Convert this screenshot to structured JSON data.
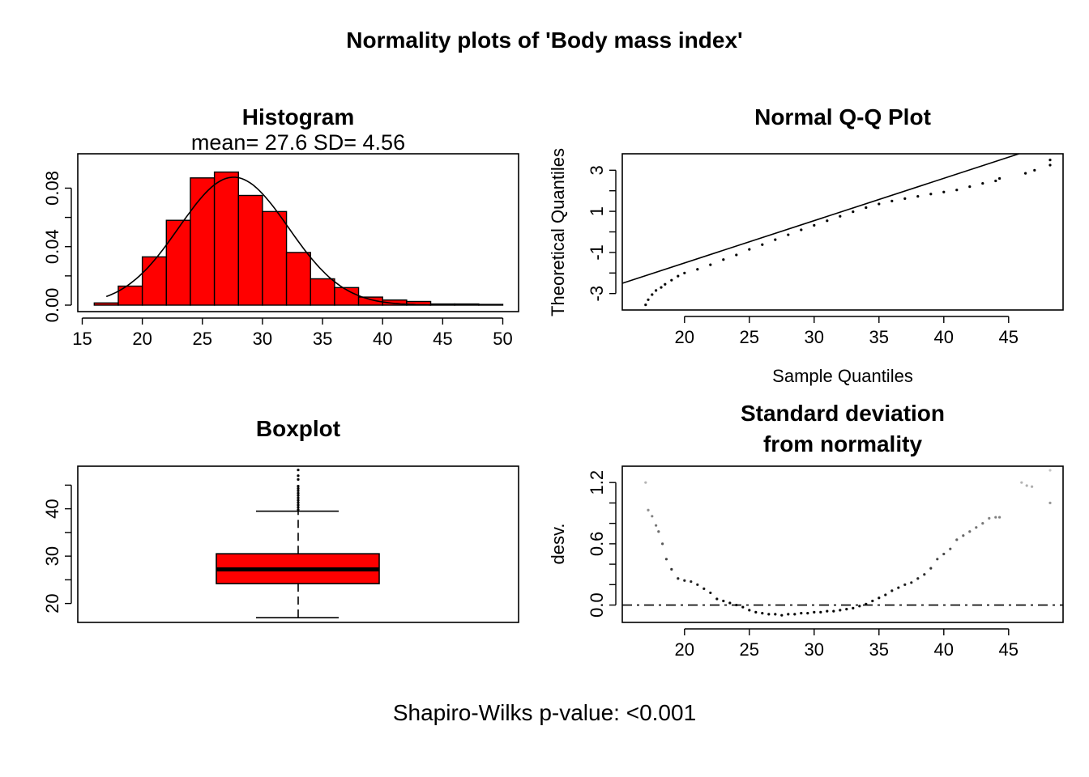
{
  "title": "Normality plots of 'Body mass index'",
  "footer": "Shapiro-Wilks p-value: <0.001",
  "colors": {
    "bar_fill": "#ff0000",
    "box_fill": "#ff0000",
    "line": "#000000"
  },
  "chart_data": [
    {
      "type": "bar",
      "title": "Histogram",
      "subtitle": "mean= 27.6  SD= 4.56",
      "bins": [
        [
          16,
          18
        ],
        [
          18,
          20
        ],
        [
          20,
          22
        ],
        [
          22,
          24
        ],
        [
          24,
          26
        ],
        [
          26,
          28
        ],
        [
          28,
          30
        ],
        [
          30,
          32
        ],
        [
          32,
          34
        ],
        [
          34,
          36
        ],
        [
          36,
          38
        ],
        [
          38,
          40
        ],
        [
          40,
          42
        ],
        [
          42,
          44
        ],
        [
          44,
          46
        ],
        [
          46,
          48
        ],
        [
          48,
          50
        ]
      ],
      "values": [
        0.0015,
        0.013,
        0.033,
        0.058,
        0.087,
        0.091,
        0.075,
        0.064,
        0.036,
        0.018,
        0.012,
        0.0055,
        0.0035,
        0.0025,
        0.0008,
        0.0008,
        0.0005
      ],
      "normal_curve": {
        "mean": 27.6,
        "sd": 4.56,
        "x_range": [
          17,
          44
        ]
      },
      "xlim": [
        15,
        50
      ],
      "ylim": [
        0,
        0.094
      ],
      "xticks": [
        "15",
        "20",
        "25",
        "30",
        "35",
        "40",
        "45",
        "50"
      ],
      "yticks": [
        "0.00",
        "0.04",
        "0.08"
      ]
    },
    {
      "type": "scatter",
      "title": "Normal Q-Q Plot",
      "xlabel": "Sample Quantiles",
      "ylabel": "Theoretical Quantiles",
      "xlim": [
        15.2,
        49.2
      ],
      "ylim": [
        -3.8,
        3.8
      ],
      "reference_line": {
        "x": [
          15.2,
          49.2
        ],
        "y": [
          -2.5,
          4.5
        ]
      },
      "points": [
        [
          17.0,
          -3.55
        ],
        [
          17.2,
          -3.3
        ],
        [
          17.5,
          -3.05
        ],
        [
          17.8,
          -2.85
        ],
        [
          18.2,
          -2.7
        ],
        [
          18.5,
          -2.55
        ],
        [
          19.0,
          -2.35
        ],
        [
          19.5,
          -2.15
        ],
        [
          20.0,
          -2.0
        ],
        [
          21.0,
          -1.82
        ],
        [
          22.0,
          -1.6
        ],
        [
          23.0,
          -1.35
        ],
        [
          24.0,
          -1.12
        ],
        [
          25.0,
          -0.85
        ],
        [
          26.0,
          -0.62
        ],
        [
          27.0,
          -0.38
        ],
        [
          28.0,
          -0.14
        ],
        [
          29.0,
          0.1
        ],
        [
          30.0,
          0.32
        ],
        [
          31.0,
          0.54
        ],
        [
          32.0,
          0.76
        ],
        [
          33.0,
          0.98
        ],
        [
          34.0,
          1.18
        ],
        [
          35.0,
          1.36
        ],
        [
          36.0,
          1.5
        ],
        [
          37.0,
          1.62
        ],
        [
          38.0,
          1.73
        ],
        [
          39.0,
          1.84
        ],
        [
          40.0,
          1.94
        ],
        [
          41.0,
          2.04
        ],
        [
          42.0,
          2.2
        ],
        [
          43.0,
          2.36
        ],
        [
          44.0,
          2.48
        ],
        [
          44.3,
          2.6
        ],
        [
          46.3,
          2.85
        ],
        [
          47.0,
          3.0
        ],
        [
          48.2,
          3.25
        ],
        [
          48.2,
          3.5
        ]
      ],
      "xticks": [
        "20",
        "25",
        "30",
        "35",
        "40",
        "45"
      ],
      "yticks": [
        "-3",
        "-1",
        "1",
        "3"
      ]
    },
    {
      "type": "boxplot",
      "title": "Boxplot",
      "stats": {
        "whisker_low": 17,
        "q1": 24.2,
        "median": 27.2,
        "q3": 30.5,
        "whisker_high": 39.5
      },
      "outliers": [
        39.8,
        40.3,
        40.8,
        41.3,
        41.8,
        42.3,
        42.8,
        43.3,
        43.8,
        44.3,
        44.8,
        46.2,
        47.0,
        48.2
      ],
      "ylim": [
        16,
        49
      ],
      "yticks": [
        "20",
        "30",
        "40"
      ]
    },
    {
      "type": "scatter",
      "title": "Standard deviation\nfrom normality",
      "ylabel": "desv.",
      "xlim": [
        15.2,
        49.2
      ],
      "ylim": [
        -0.17,
        1.36
      ],
      "reference_line": {
        "y": 0,
        "style": "dash-dot"
      },
      "points": [
        [
          17.0,
          1.2
        ],
        [
          17.2,
          0.93
        ],
        [
          17.5,
          0.87
        ],
        [
          17.8,
          0.78
        ],
        [
          18.0,
          0.72
        ],
        [
          18.3,
          0.6
        ],
        [
          18.6,
          0.45
        ],
        [
          19.0,
          0.35
        ],
        [
          19.5,
          0.26
        ],
        [
          20.0,
          0.24
        ],
        [
          20.5,
          0.23
        ],
        [
          21.0,
          0.2
        ],
        [
          21.5,
          0.16
        ],
        [
          22.0,
          0.12
        ],
        [
          22.5,
          0.06
        ],
        [
          23.0,
          0.04
        ],
        [
          23.5,
          0.02
        ],
        [
          24.0,
          0.0
        ],
        [
          24.5,
          -0.02
        ],
        [
          25.0,
          -0.05
        ],
        [
          25.5,
          -0.07
        ],
        [
          26.0,
          -0.08
        ],
        [
          26.5,
          -0.09
        ],
        [
          27.0,
          -0.09
        ],
        [
          27.5,
          -0.1
        ],
        [
          28.0,
          -0.09
        ],
        [
          28.5,
          -0.09
        ],
        [
          29.0,
          -0.08
        ],
        [
          29.5,
          -0.08
        ],
        [
          30.0,
          -0.07
        ],
        [
          30.5,
          -0.07
        ],
        [
          31.0,
          -0.06
        ],
        [
          31.5,
          -0.06
        ],
        [
          32.0,
          -0.05
        ],
        [
          32.5,
          -0.04
        ],
        [
          33.0,
          -0.03
        ],
        [
          33.5,
          -0.01
        ],
        [
          34.0,
          0.01
        ],
        [
          34.5,
          0.04
        ],
        [
          35.0,
          0.07
        ],
        [
          35.5,
          0.1
        ],
        [
          36.0,
          0.14
        ],
        [
          36.5,
          0.17
        ],
        [
          37.0,
          0.2
        ],
        [
          37.5,
          0.22
        ],
        [
          38.0,
          0.26
        ],
        [
          38.5,
          0.3
        ],
        [
          39.0,
          0.36
        ],
        [
          39.5,
          0.45
        ],
        [
          40.0,
          0.5
        ],
        [
          40.5,
          0.55
        ],
        [
          41.0,
          0.64
        ],
        [
          41.5,
          0.68
        ],
        [
          42.0,
          0.72
        ],
        [
          42.5,
          0.76
        ],
        [
          43.0,
          0.8
        ],
        [
          43.5,
          0.85
        ],
        [
          44.0,
          0.86
        ],
        [
          44.3,
          0.86
        ],
        [
          46.0,
          1.2
        ],
        [
          46.4,
          1.17
        ],
        [
          46.8,
          1.16
        ],
        [
          48.2,
          1.32
        ],
        [
          48.2,
          1.0
        ]
      ],
      "xticks": [
        "20",
        "25",
        "30",
        "35",
        "40",
        "45"
      ],
      "yticks": [
        "0.0",
        "0.6",
        "1.2"
      ]
    }
  ]
}
